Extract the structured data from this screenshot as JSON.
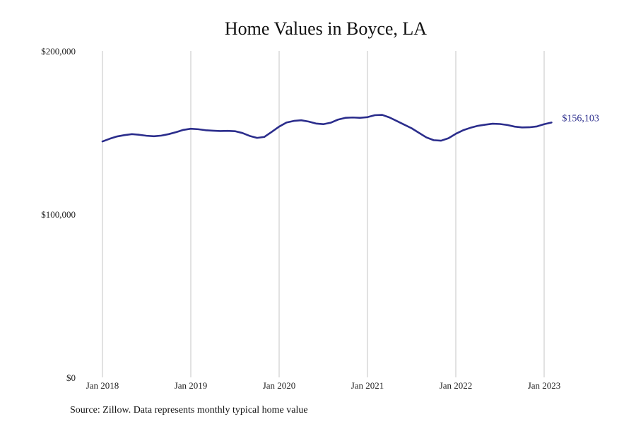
{
  "chart_data": {
    "type": "line",
    "title": "Home Values in Boyce, LA",
    "source_note": "Source: Zillow. Data represents monthly typical home value",
    "xlabel": "",
    "ylabel": "",
    "ylim": [
      0,
      200000
    ],
    "xlim": [
      "2018-01",
      "2023-02"
    ],
    "y_ticks": [
      {
        "value": 0,
        "label": "$0"
      },
      {
        "value": 100000,
        "label": "$100,000"
      },
      {
        "value": 200000,
        "label": "$200,000"
      }
    ],
    "x_ticks": [
      {
        "value": "2018-01",
        "label": "Jan 2018"
      },
      {
        "value": "2019-01",
        "label": "Jan 2019"
      },
      {
        "value": "2020-01",
        "label": "Jan 2020"
      },
      {
        "value": "2021-01",
        "label": "Jan 2021"
      },
      {
        "value": "2022-01",
        "label": "Jan 2022"
      },
      {
        "value": "2023-01",
        "label": "Jan 2023"
      }
    ],
    "grid": {
      "vertical": true,
      "horizontal": false
    },
    "line_color": "#2b2d8c",
    "end_label": "$156,103",
    "series": [
      {
        "x": [
          "2018-01",
          "2018-02",
          "2018-03",
          "2018-04",
          "2018-05",
          "2018-06",
          "2018-07",
          "2018-08",
          "2018-09",
          "2018-10",
          "2018-11",
          "2018-12",
          "2019-01",
          "2019-02",
          "2019-03",
          "2019-04",
          "2019-05",
          "2019-06",
          "2019-07",
          "2019-08",
          "2019-09",
          "2019-10",
          "2019-11",
          "2019-12",
          "2020-01",
          "2020-02",
          "2020-03",
          "2020-04",
          "2020-05",
          "2020-06",
          "2020-07",
          "2020-08",
          "2020-09",
          "2020-10",
          "2020-11",
          "2020-12",
          "2021-01",
          "2021-02",
          "2021-03",
          "2021-04",
          "2021-05",
          "2021-06",
          "2021-07",
          "2021-08",
          "2021-09",
          "2021-10",
          "2021-11",
          "2021-12",
          "2022-01",
          "2022-02",
          "2022-03",
          "2022-04",
          "2022-05",
          "2022-06",
          "2022-07",
          "2022-08",
          "2022-09",
          "2022-10",
          "2022-11",
          "2022-12",
          "2023-01",
          "2023-02"
        ],
        "values": [
          144500,
          146200,
          147600,
          148400,
          149000,
          148600,
          148000,
          147700,
          148100,
          149000,
          150200,
          151600,
          152300,
          152000,
          151400,
          151100,
          150900,
          151000,
          150800,
          149700,
          147900,
          146700,
          147300,
          150400,
          153600,
          156100,
          157100,
          157500,
          156700,
          155500,
          155100,
          156000,
          157900,
          159000,
          159200,
          159000,
          159400,
          160600,
          160800,
          159200,
          157000,
          154800,
          152600,
          149800,
          147000,
          145300,
          145000,
          146500,
          149200,
          151400,
          152900,
          154100,
          154800,
          155400,
          155200,
          154600,
          153600,
          153100,
          153200,
          153700,
          155100,
          156103
        ]
      }
    ]
  }
}
